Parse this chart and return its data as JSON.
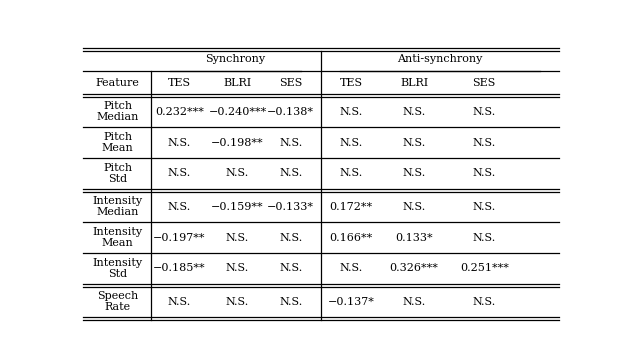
{
  "col_headers_sub": [
    "Feature",
    "TES",
    "BLRI",
    "SES",
    "TES",
    "BLRI",
    "SES"
  ],
  "rows": [
    [
      "Pitch\nMedian",
      "0.232***",
      "−0.240***",
      "−0.138*",
      "N.S.",
      "N.S.",
      "N.S."
    ],
    [
      "Pitch\nMean",
      "N.S.",
      "−0.198**",
      "N.S.",
      "N.S.",
      "N.S.",
      "N.S."
    ],
    [
      "Pitch\nStd",
      "N.S.",
      "N.S.",
      "N.S.",
      "N.S.",
      "N.S.",
      "N.S."
    ],
    [
      "Intensity\nMedian",
      "N.S.",
      "−0.159**",
      "−0.133*",
      "0.172**",
      "N.S.",
      "N.S."
    ],
    [
      "Intensity\nMean",
      "−0.197**",
      "N.S.",
      "N.S.",
      "0.166**",
      "0.133*",
      "N.S."
    ],
    [
      "Intensity\nStd",
      "−0.185**",
      "N.S.",
      "N.S.",
      "N.S.",
      "0.326***",
      "0.251***"
    ],
    [
      "Speech\nRate",
      "N.S.",
      "N.S.",
      "N.S.",
      "−0.137*",
      "N.S.",
      "N.S."
    ]
  ],
  "synchrony_label": "Synchrony",
  "antisynchrony_label": "Anti-synchrony",
  "double_line_after_rows": [
    2,
    5
  ],
  "fig_width": 6.24,
  "fig_height": 3.42,
  "font_size": 8.0,
  "bg_color": "#ffffff"
}
